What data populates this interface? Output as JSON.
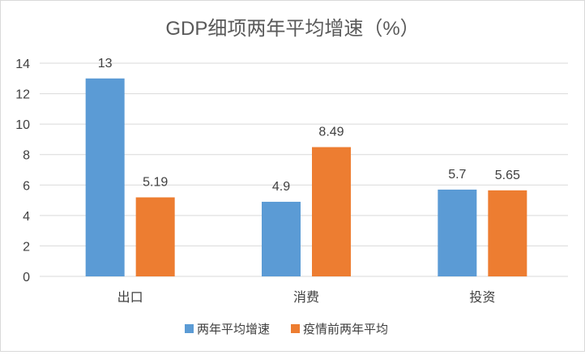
{
  "chart_data": {
    "type": "bar",
    "title": "GDP细项两年平均增速（%）",
    "categories": [
      "出口",
      "消费",
      "投资"
    ],
    "series": [
      {
        "name": "两年平均增速",
        "values": [
          13,
          4.9,
          5.7
        ],
        "color": "#5b9bd5",
        "labels": [
          "13",
          "4.9",
          "5.7"
        ]
      },
      {
        "name": "疫情前两年平均",
        "values": [
          5.19,
          8.49,
          5.65
        ],
        "color": "#ed7d31",
        "labels": [
          "5.19",
          "8.49",
          "5.65"
        ]
      }
    ],
    "ylim": [
      0,
      14
    ],
    "yticks": [
      0,
      2,
      4,
      6,
      8,
      10,
      12,
      14
    ],
    "ytick_labels": [
      "0",
      "2",
      "4",
      "6",
      "8",
      "10",
      "12",
      "14"
    ],
    "grid": true,
    "legend_position": "bottom",
    "gridline_color": "#d9d9d9"
  }
}
